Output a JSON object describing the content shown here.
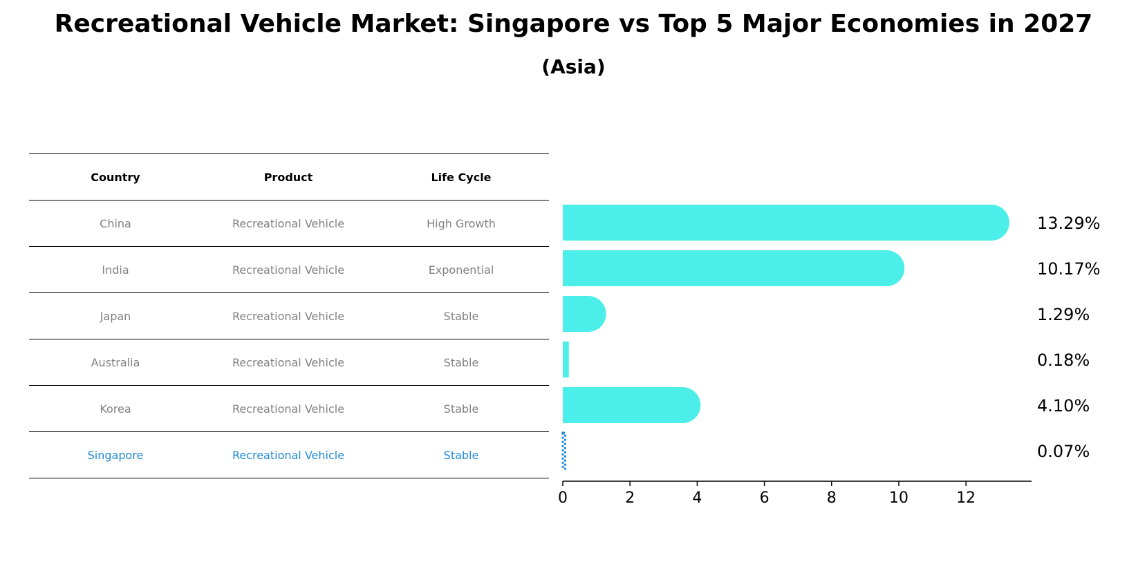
{
  "title": "Recreational Vehicle Market: Singapore vs Top 5 Major Economies in 2027",
  "subtitle": "(Asia)",
  "table": {
    "headers": [
      "Country",
      "Product",
      "Life Cycle"
    ],
    "rows": [
      {
        "country": "China",
        "product": "Recreational Vehicle",
        "life_cycle": "High Growth"
      },
      {
        "country": "India",
        "product": "Recreational Vehicle",
        "life_cycle": "Exponential"
      },
      {
        "country": "Japan",
        "product": "Recreational Vehicle",
        "life_cycle": "Stable"
      },
      {
        "country": "Australia",
        "product": "Recreational Vehicle",
        "life_cycle": "Stable"
      },
      {
        "country": "Korea",
        "product": "Recreational Vehicle",
        "life_cycle": "Stable"
      },
      {
        "country": "Singapore",
        "product": "Recreational Vehicle",
        "life_cycle": "Stable"
      }
    ]
  },
  "chart_data": {
    "type": "bar",
    "orientation": "horizontal",
    "categories": [
      "China",
      "India",
      "Japan",
      "Australia",
      "Korea",
      "Singapore"
    ],
    "values": [
      13.29,
      10.17,
      1.29,
      0.18,
      4.1,
      0.07
    ],
    "value_labels": [
      "13.29%",
      "10.17%",
      "1.29%",
      "0.18%",
      "4.10%",
      "0.07%"
    ],
    "xlim": [
      0,
      13.9
    ],
    "xticks": [
      0,
      2,
      4,
      6,
      8,
      10,
      12
    ],
    "highlight": "Singapore",
    "colors": {
      "bar": "#4beee9",
      "highlight": "#1f88d6",
      "table_text": "#808080"
    },
    "grid": false
  }
}
